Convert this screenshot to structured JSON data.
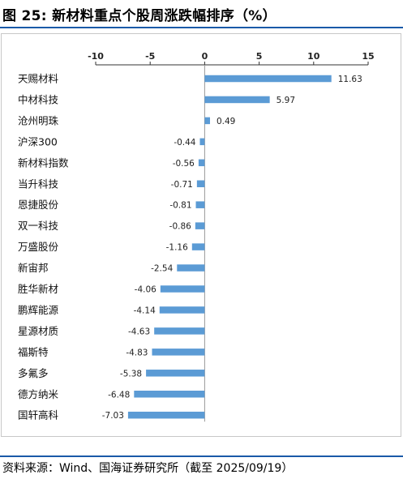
{
  "title": "图 25:  新材料重点个股周涨跌幅排序（%）",
  "source": "资料来源：Wind、国海证券研究所（截至 2025/09/19）",
  "chart_data": {
    "type": "bar",
    "orientation": "horizontal",
    "categories": [
      "天赐材料",
      "中材科技",
      "沧州明珠",
      "沪深300",
      "新材料指数",
      "当升科技",
      "恩捷股份",
      "双一科技",
      "万盛股份",
      "新宙邦",
      "胜华新材",
      "鹏辉能源",
      "星源材质",
      "福斯特",
      "多氟多",
      "德方纳米",
      "国轩高科"
    ],
    "values": [
      11.63,
      5.97,
      0.49,
      -0.44,
      -0.56,
      -0.71,
      -0.81,
      -0.86,
      -1.16,
      -2.54,
      -4.06,
      -4.14,
      -4.63,
      -4.83,
      -5.38,
      -6.48,
      -7.03
    ],
    "value_labels": [
      "11.63",
      "5.97",
      "0.49",
      "-0.44",
      "-0.56",
      "-0.71",
      "-0.81",
      "-0.86",
      "-1.16",
      "-2.54",
      "-4.06",
      "-4.14",
      "-4.63",
      "-4.83",
      "-5.38",
      "-6.48",
      "-7.03"
    ],
    "xlim": [
      -10,
      15
    ],
    "x_ticks": [
      -10,
      -5,
      0,
      5,
      10,
      15
    ],
    "x_tick_labels": [
      "-10",
      "-5",
      "0",
      "5",
      "10",
      "15"
    ],
    "axis_position": "top",
    "grid": false,
    "legend": "none",
    "bar_color": "#5b9bd5"
  }
}
